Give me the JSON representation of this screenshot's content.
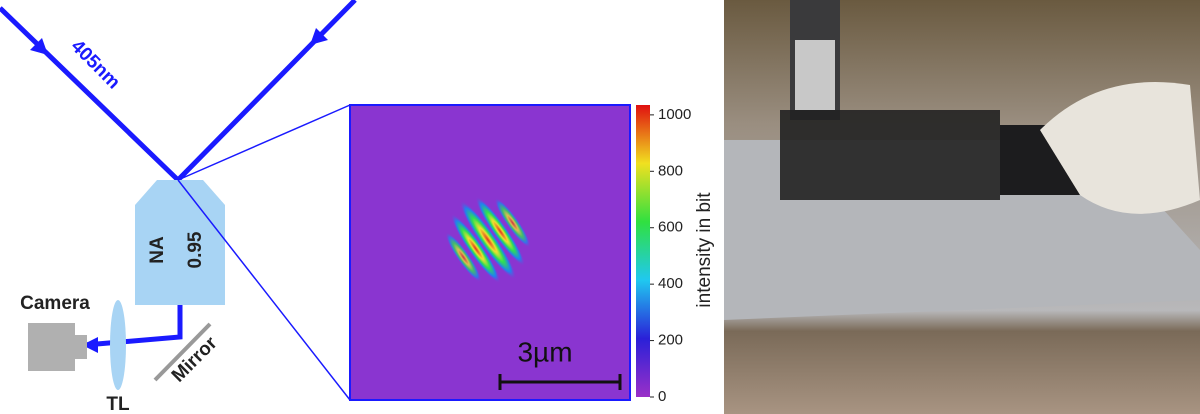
{
  "diagram": {
    "beam_label": "405nm",
    "objective": {
      "label": "NA",
      "value": "0.95"
    },
    "camera": "Camera",
    "lens": "TL",
    "mirror": "Mirror"
  },
  "image": {
    "scale_bar": "3µm",
    "colorbar": {
      "label": "intensity in bit",
      "lim": [
        0,
        1035
      ],
      "ticks": [
        0,
        200,
        400,
        600,
        800,
        1000
      ]
    }
  }
}
